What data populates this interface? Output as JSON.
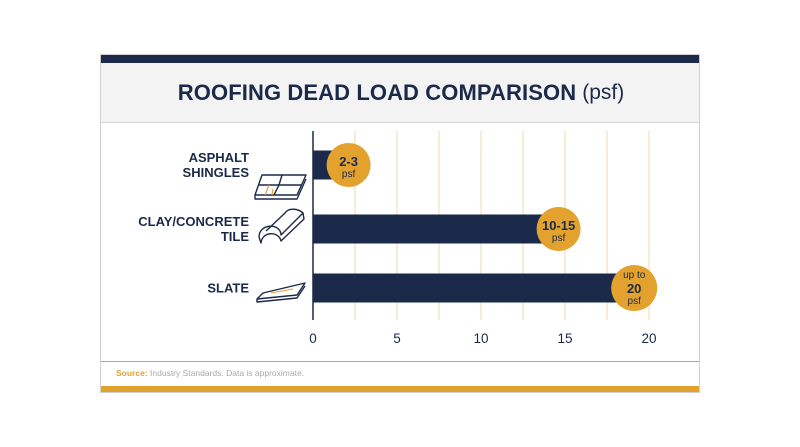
{
  "header": {
    "title": "ROOFING DEAD LOAD COMPARISON",
    "unit": "(psf)"
  },
  "colors": {
    "navy": "#1b2a4a",
    "gold": "#e3a12d",
    "gridline": "#f0d9a8"
  },
  "chart_data": {
    "type": "bar",
    "orientation": "horizontal",
    "title": "ROOFING DEAD LOAD COMPARISON (psf)",
    "categories": [
      {
        "lines": [
          "ASPHALT",
          "SHINGLES"
        ],
        "icon": "asphalt-shingles-icon"
      },
      {
        "lines": [
          "CLAY/CONCRETE",
          "TILE"
        ],
        "icon": "clay-tile-icon"
      },
      {
        "lines": [
          "SLATE"
        ],
        "icon": "slate-icon"
      }
    ],
    "values": [
      2,
      14.5,
      19
    ],
    "data_labels": [
      {
        "prefix": "",
        "value": "2-3",
        "unit": "psf"
      },
      {
        "prefix": "",
        "value": "10-15",
        "unit": "psf"
      },
      {
        "prefix": "up to",
        "value": "20",
        "unit": "psf"
      }
    ],
    "xlim": [
      0,
      20
    ],
    "xticks": [
      "0",
      "5",
      "10",
      "15",
      "20"
    ],
    "grid_step": 2.5,
    "grid": true
  },
  "footer": {
    "source_label": "Source:",
    "source_text": "Industry Standards. Data is approximate."
  }
}
